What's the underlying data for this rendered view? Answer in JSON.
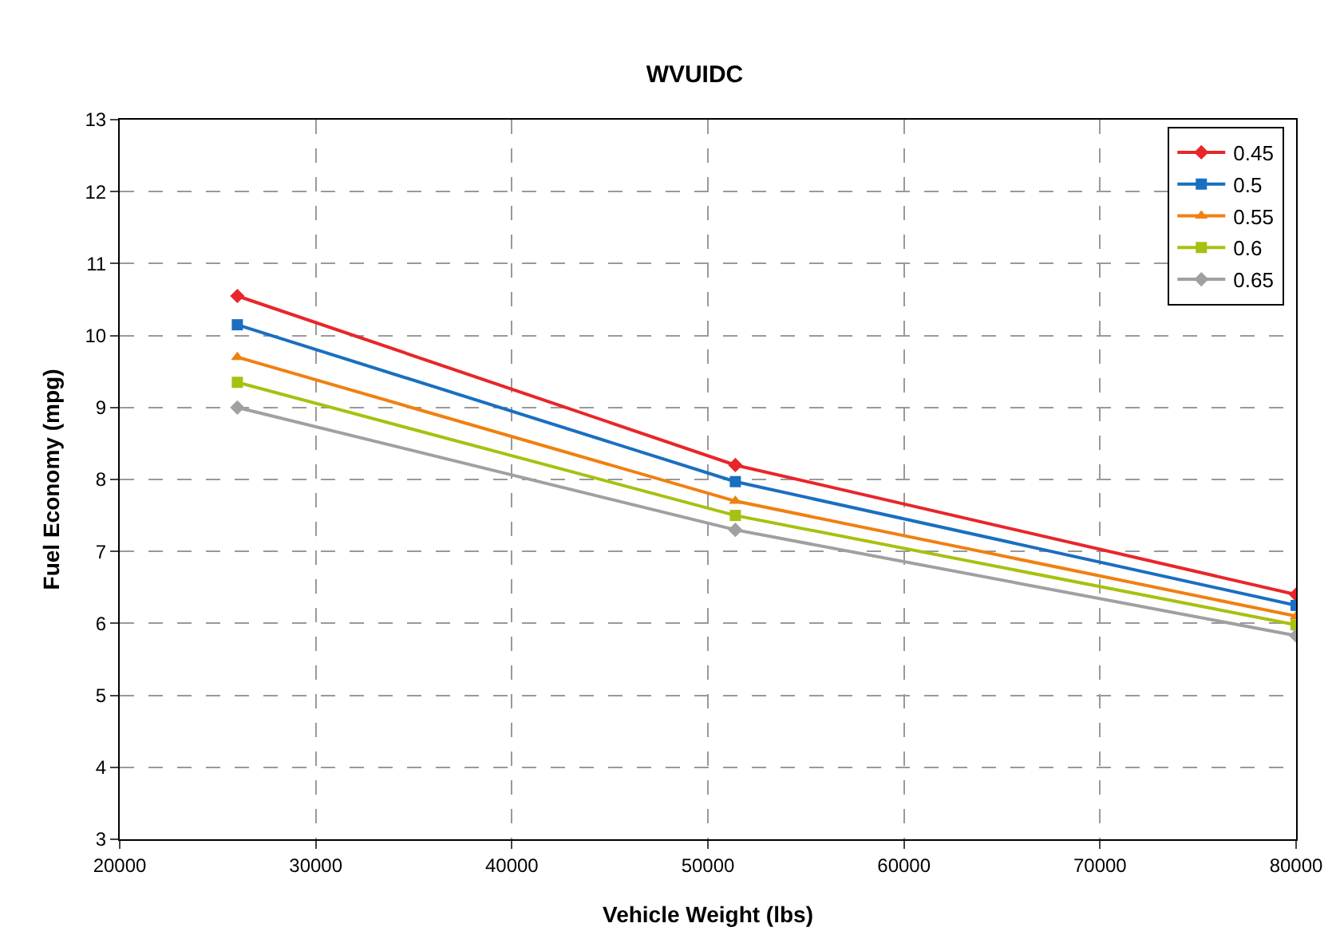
{
  "chart_data": {
    "type": "line",
    "title": "WVUIDC",
    "xlabel": "Vehicle Weight (lbs)",
    "ylabel": "Fuel Economy (mpg)",
    "x": [
      26000,
      51400,
      80000
    ],
    "series": [
      {
        "name": "0.45",
        "color": "#e8262a",
        "marker": "diamond",
        "values": [
          10.55,
          8.2,
          6.4
        ]
      },
      {
        "name": "0.5",
        "color": "#1a6fc0",
        "marker": "square",
        "values": [
          10.15,
          7.97,
          6.25
        ]
      },
      {
        "name": "0.55",
        "color": "#f08010",
        "marker": "triangle",
        "values": [
          9.7,
          7.7,
          6.1
        ]
      },
      {
        "name": "0.6",
        "color": "#a8c010",
        "marker": "square",
        "values": [
          9.35,
          7.5,
          5.98
        ]
      },
      {
        "name": "0.65",
        "color": "#a0a0a0",
        "marker": "diamond",
        "values": [
          9.0,
          7.3,
          5.83
        ]
      }
    ],
    "xlim": [
      20000,
      80000
    ],
    "xticks": [
      20000,
      30000,
      40000,
      50000,
      60000,
      70000,
      80000
    ],
    "ylim": [
      3,
      13
    ],
    "yticks": [
      3,
      4,
      5,
      6,
      7,
      8,
      9,
      10,
      11,
      12,
      13
    ],
    "grid": true,
    "legend": "top right",
    "line_style": "solid"
  }
}
